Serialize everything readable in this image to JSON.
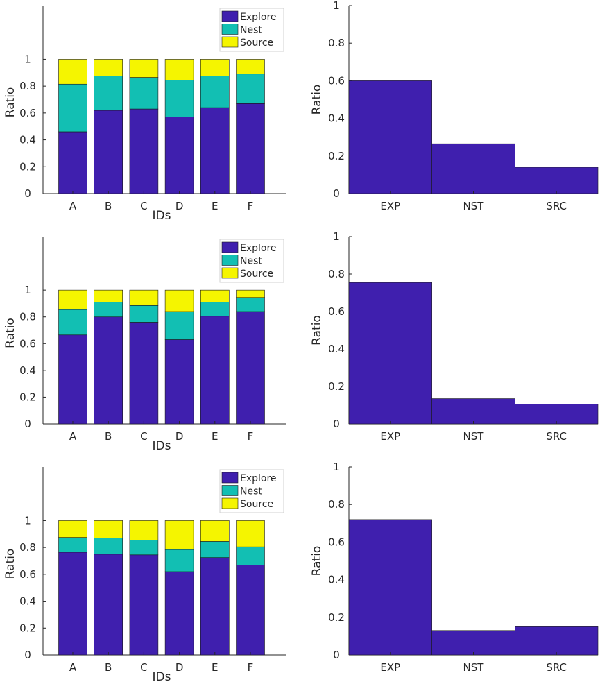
{
  "colors": {
    "explore": "#3f1fae",
    "nest": "#12bfb3",
    "source": "#f5f500",
    "axis": "#262626",
    "edge": "#1a1a1a"
  },
  "chart_data": [
    {
      "type": "bar",
      "stacked": true,
      "categories": [
        "A",
        "B",
        "C",
        "D",
        "E",
        "F"
      ],
      "series": [
        {
          "name": "Explore",
          "values": [
            0.46,
            0.62,
            0.63,
            0.57,
            0.64,
            0.67
          ]
        },
        {
          "name": "Nest",
          "values": [
            0.355,
            0.255,
            0.235,
            0.275,
            0.235,
            0.22
          ]
        },
        {
          "name": "Source",
          "values": [
            0.185,
            0.125,
            0.135,
            0.155,
            0.125,
            0.11
          ]
        }
      ],
      "xlabel": "IDs",
      "ylabel": "Ratio",
      "ylim": [
        0,
        1.4
      ],
      "yticks": [
        0,
        0.2,
        0.4,
        0.6,
        0.8,
        1
      ],
      "legend": [
        "Explore",
        "Nest",
        "Source"
      ],
      "legend_position": "top-right"
    },
    {
      "type": "bar",
      "categories": [
        "EXP",
        "NST",
        "SRC"
      ],
      "values": [
        0.6,
        0.265,
        0.14
      ],
      "ylabel": "Ratio",
      "ylim": [
        0,
        1
      ],
      "yticks": [
        0,
        0.2,
        0.4,
        0.6,
        0.8,
        1
      ]
    },
    {
      "type": "bar",
      "stacked": true,
      "categories": [
        "A",
        "B",
        "C",
        "D",
        "E",
        "F"
      ],
      "series": [
        {
          "name": "Explore",
          "values": [
            0.665,
            0.8,
            0.76,
            0.63,
            0.805,
            0.84
          ]
        },
        {
          "name": "Nest",
          "values": [
            0.19,
            0.11,
            0.125,
            0.21,
            0.105,
            0.105
          ]
        },
        {
          "name": "Source",
          "values": [
            0.145,
            0.09,
            0.115,
            0.16,
            0.09,
            0.055
          ]
        }
      ],
      "xlabel": "IDs",
      "ylabel": "Ratio",
      "ylim": [
        0,
        1.4
      ],
      "yticks": [
        0,
        0.2,
        0.4,
        0.6,
        0.8,
        1
      ],
      "legend": [
        "Explore",
        "Nest",
        "Source"
      ],
      "legend_position": "top-right"
    },
    {
      "type": "bar",
      "categories": [
        "EXP",
        "NST",
        "SRC"
      ],
      "values": [
        0.755,
        0.135,
        0.105
      ],
      "ylabel": "Ratio",
      "ylim": [
        0,
        1
      ],
      "yticks": [
        0,
        0.2,
        0.4,
        0.6,
        0.8,
        1
      ]
    },
    {
      "type": "bar",
      "stacked": true,
      "categories": [
        "A",
        "B",
        "C",
        "D",
        "E",
        "F"
      ],
      "series": [
        {
          "name": "Explore",
          "values": [
            0.765,
            0.75,
            0.745,
            0.62,
            0.725,
            0.67
          ]
        },
        {
          "name": "Nest",
          "values": [
            0.11,
            0.12,
            0.11,
            0.165,
            0.12,
            0.135
          ]
        },
        {
          "name": "Source",
          "values": [
            0.125,
            0.13,
            0.145,
            0.215,
            0.155,
            0.195
          ]
        }
      ],
      "xlabel": "IDs",
      "ylabel": "Ratio",
      "ylim": [
        0,
        1.4
      ],
      "yticks": [
        0,
        0.2,
        0.4,
        0.6,
        0.8,
        1
      ],
      "legend": [
        "Explore",
        "Nest",
        "Source"
      ],
      "legend_position": "top-right"
    },
    {
      "type": "bar",
      "categories": [
        "EXP",
        "NST",
        "SRC"
      ],
      "values": [
        0.72,
        0.13,
        0.15
      ],
      "ylabel": "Ratio",
      "ylim": [
        0,
        1
      ],
      "yticks": [
        0,
        0.2,
        0.4,
        0.6,
        0.8,
        1
      ]
    }
  ]
}
